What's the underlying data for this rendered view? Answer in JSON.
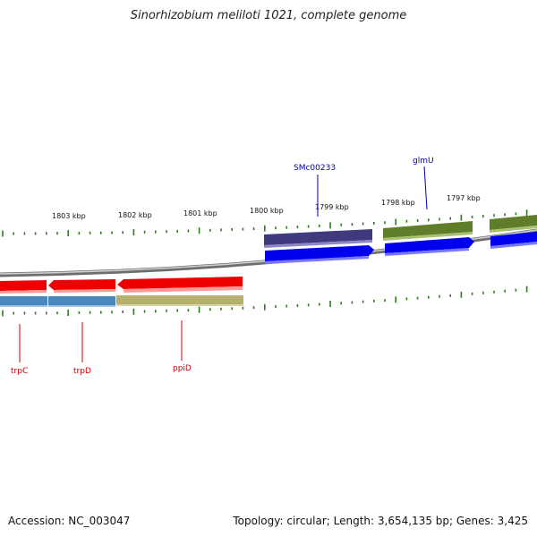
{
  "title": "Sinorhizobium meliloti 1021, complete genome",
  "footer": {
    "accession": "Accession: NC_003047",
    "summary": "Topology: circular; Length: 3,654,135 bp; Genes: 3,425"
  },
  "scale_labels": [
    "1803 kbp",
    "1802 kbp",
    "1801 kbp",
    "1800 kbp",
    "1799 kbp",
    "1798 kbp",
    "1797 kbp"
  ],
  "genes_top": [
    {
      "label": "SMc00233",
      "label_color": "#0000aa",
      "fill": "#3f3a7e",
      "cds_fill": "#0000ee"
    },
    {
      "label": "glmU",
      "label_color": "#0000aa",
      "fill": "#607e2a",
      "cds_fill": "#0000ee"
    },
    {
      "label": "",
      "label_color": "#0000aa",
      "fill": "#607e2a",
      "cds_fill": "#0000ee"
    }
  ],
  "genes_bottom": [
    {
      "label": "trpC",
      "label_color": "#cc0000",
      "fill": "#ee0000",
      "band_fill": "#4a87bd"
    },
    {
      "label": "trpD",
      "label_color": "#cc0000",
      "fill": "#ee0000",
      "band_fill": "#4a87bd"
    },
    {
      "label": "ppiD",
      "label_color": "#cc0000",
      "fill": "#ee0000",
      "band_fill": "#b5b06e"
    }
  ],
  "colors": {
    "backbone": "#808080",
    "tick": "#2e7d1e"
  }
}
